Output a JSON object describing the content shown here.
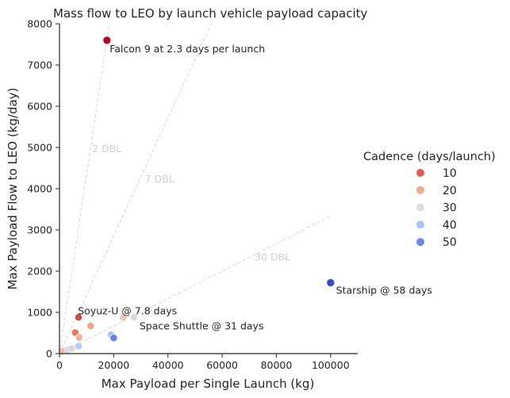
{
  "chart_data": {
    "type": "scatter",
    "title": "Mass flow to LEO by launch vehicle payload capacity",
    "xlabel": "Max Payload per Single Launch (kg)",
    "ylabel": "Max Payload Flow to LEO (kg/day)",
    "xlim": [
      0,
      110000
    ],
    "ylim": [
      0,
      8000
    ],
    "xticks": [
      0,
      20000,
      40000,
      60000,
      80000,
      100000
    ],
    "yticks": [
      0,
      1000,
      2000,
      3000,
      4000,
      5000,
      6000,
      7000,
      8000
    ],
    "grid": false,
    "color_scale": {
      "name": "coolwarm (reversed)",
      "low_cadence_color": "#b40426",
      "high_cadence_color": "#3b4cc0",
      "min": 1,
      "max": 58
    },
    "legend": {
      "title": "Cadence (days/launch)",
      "placement": "center-right",
      "entries": [
        {
          "label": "10",
          "color": "#dd5f4b"
        },
        {
          "label": "20",
          "color": "#f2aa8a"
        },
        {
          "label": "30",
          "color": "#dcdcdc"
        },
        {
          "label": "40",
          "color": "#a7c5fe"
        },
        {
          "label": "50",
          "color": "#6788ee"
        }
      ]
    },
    "reference_lines": [
      {
        "label": "2 DBL",
        "cadence_days": 2.3
      },
      {
        "label": "7 DBL",
        "cadence_days": 7
      },
      {
        "label": "30 DBL",
        "cadence_days": 30
      }
    ],
    "points": [
      {
        "x": 17500,
        "y": 7600,
        "cadence": 2.3,
        "color": "#b40426"
      },
      {
        "x": 100000,
        "y": 1720,
        "cadence": 58,
        "color": "#3b4cc0"
      },
      {
        "x": 7000,
        "y": 880,
        "cadence": 7.8,
        "color": "#d0473d"
      },
      {
        "x": 27500,
        "y": 880,
        "cadence": 31,
        "color": "#d9d9d9"
      },
      {
        "x": 23500,
        "y": 870,
        "cadence": 27,
        "color": "#e6cbb8"
      },
      {
        "x": 11500,
        "y": 670,
        "cadence": 17,
        "color": "#f0a585"
      },
      {
        "x": 5800,
        "y": 510,
        "cadence": 11,
        "color": "#e8765a"
      },
      {
        "x": 7300,
        "y": 390,
        "cadence": 18,
        "color": "#f4b596"
      },
      {
        "x": 19000,
        "y": 460,
        "cadence": 41,
        "color": "#a8c6fd"
      },
      {
        "x": 20000,
        "y": 380,
        "cadence": 52,
        "color": "#6180e9"
      },
      {
        "x": 7000,
        "y": 180,
        "cadence": 38,
        "color": "#b5cdfa"
      },
      {
        "x": 3000,
        "y": 90,
        "cadence": 34,
        "color": "#cbd8ee"
      },
      {
        "x": 1000,
        "y": 60,
        "cadence": 20,
        "color": "#f4c0a8"
      },
      {
        "x": 4500,
        "y": 120,
        "cadence": 28,
        "color": "#e0d6cf"
      }
    ],
    "annotations": [
      {
        "text": "Falcon 9 at 2.3 days per launch"
      },
      {
        "text": "Starship @ 58 days"
      },
      {
        "text": "Soyuz-U @ 7.8 days"
      },
      {
        "text": "Space Shuttle @ 31 days"
      }
    ]
  }
}
